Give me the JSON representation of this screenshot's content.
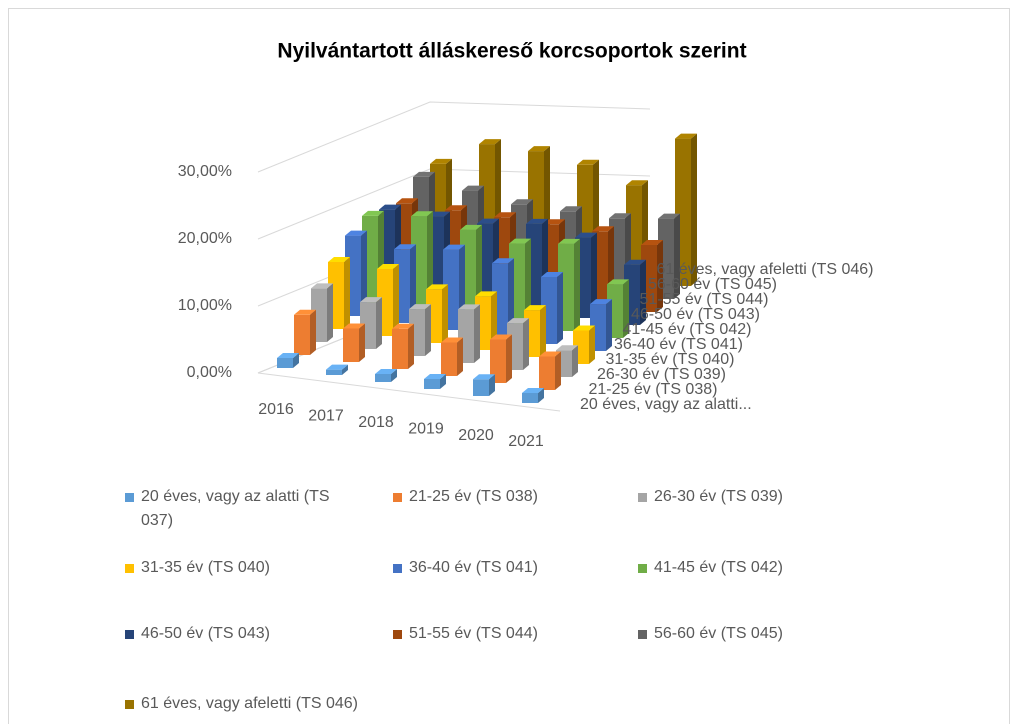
{
  "chart_data": {
    "type": "bar3d",
    "title": "Nyilvántartott álláskereső korcsoportok szerint",
    "categories": [
      "2016",
      "2017",
      "2018",
      "2019",
      "2020",
      "2021"
    ],
    "depth_labels": [
      "20 éves, vagy az alatti...",
      "21-25 év (TS 038)",
      "26-30 év (TS 039)",
      "31-35 év (TS 040)",
      "36-40 év (TS 041)",
      "41-45 év (TS 042)",
      "46-50 év (TS 043)",
      "51-55 év (TS 044)",
      "56-60 év (TS 045)",
      "61 éves, vagy afeletti (TS 046)"
    ],
    "ylim": [
      0,
      30
    ],
    "yticks": [
      {
        "value": 0,
        "label": "0,00%"
      },
      {
        "value": 10,
        "label": "10,00%"
      },
      {
        "value": 20,
        "label": "20,00%"
      },
      {
        "value": 30,
        "label": "30,00%"
      }
    ],
    "grid": true,
    "legend": "bottom",
    "series": [
      {
        "name": "20 éves, vagy az alatti (TS 037)",
        "color": "#5b9bd5",
        "values": [
          1.5,
          0.8,
          1.2,
          1.5,
          2.5,
          1.5
        ]
      },
      {
        "name": "21-25 év (TS 038)",
        "color": "#ed7d31",
        "values": [
          6,
          5,
          6,
          5,
          6.5,
          5
        ]
      },
      {
        "name": "26-30 év (TS 039)",
        "color": "#a5a5a5",
        "values": [
          8,
          7,
          7,
          8,
          7,
          4
        ]
      },
      {
        "name": "31-35 év (TS 040)",
        "color": "#ffc000",
        "values": [
          10,
          10,
          8,
          8,
          7,
          5
        ]
      },
      {
        "name": "36-40 év (TS 041)",
        "color": "#4472c4",
        "values": [
          12,
          11,
          12,
          11,
          10,
          7
        ]
      },
      {
        "name": "41-45 év (TS 042)",
        "color": "#70ad47",
        "values": [
          13,
          14,
          13,
          12,
          13,
          8
        ]
      },
      {
        "name": "46-50 év (TS 043)",
        "color": "#264478",
        "values": [
          12,
          12,
          12,
          13,
          12,
          9
        ]
      },
      {
        "name": "51-55 év (TS 044)",
        "color": "#9e480e",
        "values": [
          11,
          11,
          11,
          11,
          11,
          10
        ]
      },
      {
        "name": "56-60 év (TS 045)",
        "color": "#636363",
        "values": [
          13,
          12,
          11,
          11,
          11,
          12
        ]
      },
      {
        "name": "61 éves, vagy afeletti (TS 046)",
        "color": "#997300",
        "values": [
          13,
          17,
          17,
          16,
          14,
          22
        ]
      }
    ]
  }
}
